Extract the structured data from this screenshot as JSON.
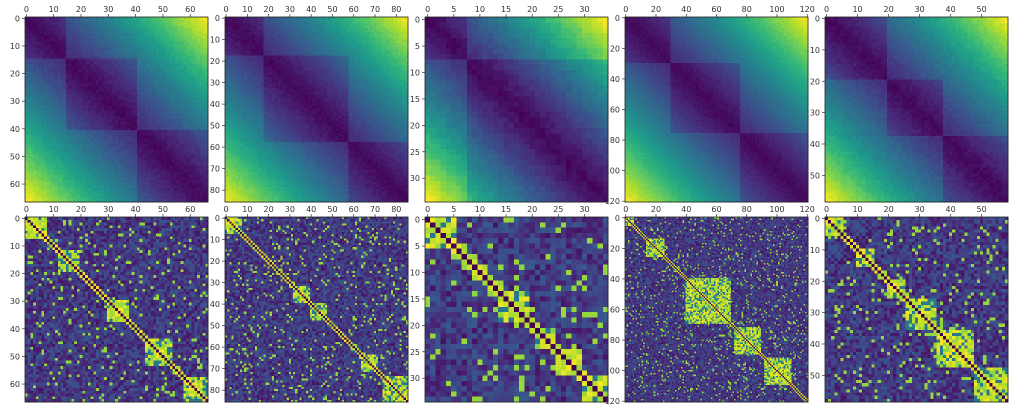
{
  "figure": {
    "background": "#ffffff",
    "colormap": "viridis",
    "colormap_stops": [
      "#440154",
      "#482878",
      "#3e4989",
      "#31688e",
      "#26828e",
      "#1f9e89",
      "#35b779",
      "#6ece58",
      "#b5de2b",
      "#fde725"
    ]
  },
  "chart_data": [
    {
      "type": "heatmap",
      "matrix_size": 67,
      "pattern": "distance",
      "groups": [
        15,
        26,
        26
      ],
      "xticks": [
        0,
        10,
        20,
        30,
        40,
        50,
        60
      ],
      "yticks": [
        0,
        10,
        20,
        30,
        40,
        50,
        60
      ]
    },
    {
      "type": "heatmap",
      "matrix_size": 86,
      "pattern": "distance",
      "groups": [
        18,
        40,
        28
      ],
      "xticks": [
        0,
        10,
        20,
        30,
        40,
        50,
        60,
        70,
        80
      ],
      "yticks": [
        0,
        10,
        20,
        30,
        40,
        50,
        60,
        70,
        80
      ]
    },
    {
      "type": "heatmap",
      "matrix_size": 35,
      "pattern": "distance",
      "groups": [
        8,
        27
      ],
      "xticks": [
        0,
        5,
        10,
        15,
        20,
        25,
        30
      ],
      "yticks": [
        0,
        5,
        10,
        15,
        20,
        25,
        30
      ]
    },
    {
      "type": "heatmap",
      "matrix_size": 121,
      "pattern": "distance",
      "groups": [
        30,
        46,
        45
      ],
      "xticks": [
        0,
        20,
        40,
        60,
        80,
        100,
        120
      ],
      "yticks": [
        0,
        20,
        40,
        60,
        80,
        100,
        120
      ]
    },
    {
      "type": "heatmap",
      "matrix_size": 59,
      "pattern": "distance",
      "groups": [
        20,
        18,
        21
      ],
      "xticks": [
        0,
        10,
        20,
        30,
        40,
        50
      ],
      "yticks": [
        0,
        10,
        20,
        30,
        40,
        50
      ]
    },
    {
      "type": "heatmap",
      "matrix_size": 67,
      "pattern": "similarity",
      "blocks": [
        [
          0,
          8
        ],
        [
          12,
          20
        ],
        [
          30,
          38
        ],
        [
          44,
          54
        ],
        [
          58,
          67
        ]
      ],
      "xticks": [
        0,
        10,
        20,
        30,
        40,
        50,
        60
      ],
      "yticks": [
        0,
        10,
        20,
        30,
        40,
        50,
        60
      ]
    },
    {
      "type": "heatmap",
      "matrix_size": 86,
      "pattern": "similarity",
      "blocks": [
        [
          0,
          8
        ],
        [
          32,
          40
        ],
        [
          40,
          48
        ],
        [
          64,
          72
        ],
        [
          74,
          86
        ]
      ],
      "xticks": [
        0,
        10,
        20,
        30,
        40,
        50,
        60,
        70,
        80
      ],
      "yticks": [
        0,
        10,
        20,
        30,
        40,
        50,
        60,
        70,
        80
      ]
    },
    {
      "type": "heatmap",
      "matrix_size": 35,
      "pattern": "similarity",
      "blocks": [
        [
          0,
          6
        ],
        [
          9,
          12
        ],
        [
          14,
          20
        ],
        [
          21,
          25
        ],
        [
          25,
          30
        ],
        [
          30,
          35
        ]
      ],
      "xticks": [
        0,
        5,
        10,
        15,
        20,
        25,
        30
      ],
      "yticks": [
        0,
        5,
        10,
        15,
        20,
        25,
        30
      ]
    },
    {
      "type": "heatmap",
      "matrix_size": 121,
      "pattern": "similarity",
      "blocks": [
        [
          0,
          6
        ],
        [
          14,
          26
        ],
        [
          40,
          70
        ],
        [
          72,
          90
        ],
        [
          92,
          110
        ]
      ],
      "xticks": [
        0,
        20,
        40,
        60,
        80,
        100,
        120
      ],
      "yticks": [
        0,
        20,
        40,
        60,
        80,
        100,
        120
      ]
    },
    {
      "type": "heatmap",
      "matrix_size": 59,
      "pattern": "similarity",
      "blocks": [
        [
          0,
          6
        ],
        [
          10,
          16
        ],
        [
          20,
          26
        ],
        [
          26,
          36
        ],
        [
          36,
          48
        ],
        [
          48,
          59
        ]
      ],
      "xticks": [
        0,
        10,
        20,
        30,
        40,
        50
      ],
      "yticks": [
        0,
        10,
        20,
        30,
        40,
        50
      ]
    }
  ]
}
